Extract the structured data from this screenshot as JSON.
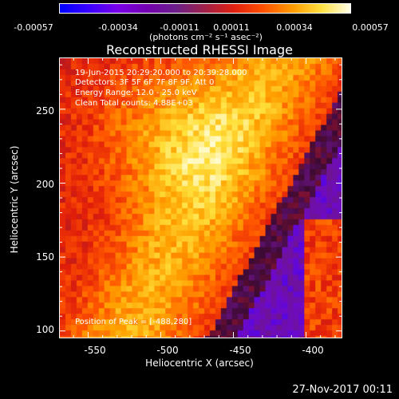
{
  "chart_data": {
    "type": "heatmap",
    "title": "Reconstructed RHESSI Image",
    "xlabel": "Heliocentric X (arcsec)",
    "ylabel": "Heliocentric Y (arcsec)",
    "xlim": [
      -570,
      -375
    ],
    "ylim": [
      95,
      285
    ],
    "xticks": [
      "-550",
      "-500",
      "-450",
      "-400"
    ],
    "xtick_values": [
      -550,
      -500,
      -450,
      -400
    ],
    "yticks": [
      "250",
      "200",
      "150",
      "100"
    ],
    "ytick_values": [
      250,
      200,
      150,
      100
    ],
    "colorbar": {
      "ticks": [
        "-0.00057",
        "-0.00034",
        "-0.00011",
        "0.00011",
        "0.00034",
        "0.00057"
      ],
      "tick_values": [
        -0.00057,
        -0.00034,
        -0.00011,
        0.00011,
        0.00034,
        0.00057
      ],
      "unit": "(photons cm⁻² s⁻¹ asec⁻²)"
    },
    "info": {
      "line1": "19-Jun-2015 20:29:20.000 to 20:39:28.000",
      "line2": "Detectors: 3F 5F 6F 7F 8F 9F, Att 0",
      "line3": "Energy Range: 12.0 - 25.0 keV",
      "line4": "Clean     Total counts: 4.88E+03"
    },
    "peak_label": "Position of Peak = [-488,280]",
    "peak": [
      -488,
      280
    ],
    "colors": {
      "colormap": [
        "#0000ff",
        "#6b1f8a",
        "#e02010",
        "#ff9a00",
        "#ffffe8"
      ]
    }
  },
  "footer": {
    "date": "27-Nov-2017 00:11"
  }
}
